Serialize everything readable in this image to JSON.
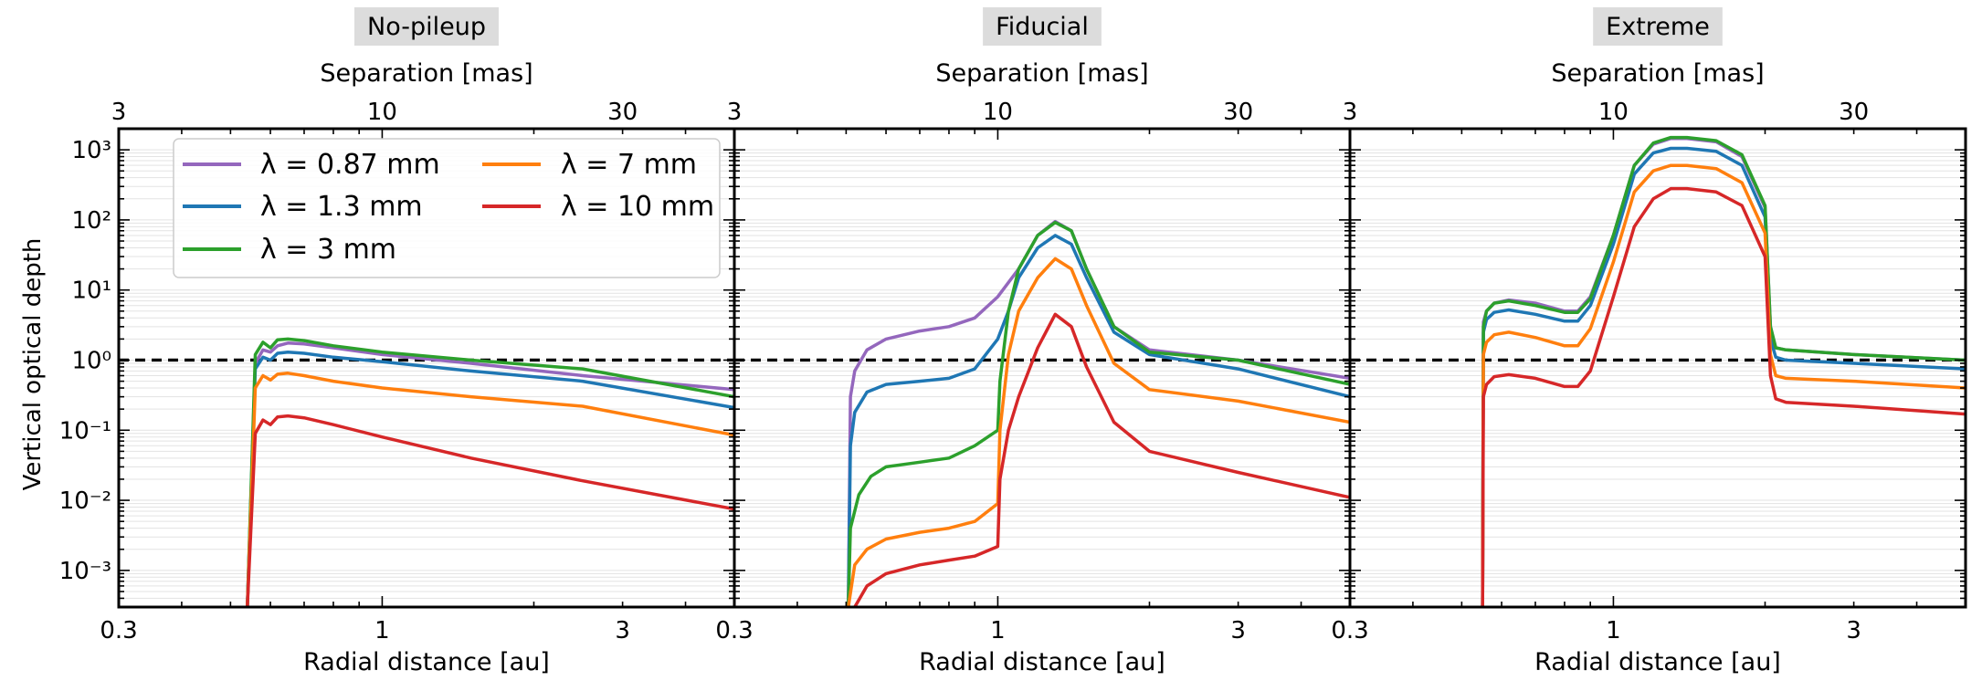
{
  "figure": {
    "shared_ylabel": "Vertical optical depth",
    "reference_line": {
      "tau": 1,
      "style": "dashed",
      "color": "#000000"
    }
  },
  "legend": {
    "placement": "upper-left of first panel",
    "entries": [
      {
        "label": "λ = 0.87 mm",
        "color": "#9467bd"
      },
      {
        "label": "λ = 1.3 mm",
        "color": "#1f77b4"
      },
      {
        "label": "λ = 3 mm",
        "color": "#2ca02c"
      },
      {
        "label": "λ = 7 mm",
        "color": "#ff7f0e"
      },
      {
        "label": "λ = 10 mm",
        "color": "#d62728"
      }
    ]
  },
  "chart_data": [
    {
      "type": "line",
      "title": "No-pileup",
      "xlabel": "Radial distance [au]",
      "ylabel": "Vertical optical depth",
      "top_xlabel": "Separation [mas]",
      "xscale": "log",
      "yscale": "log",
      "xlim": [
        0.3,
        5.0
      ],
      "ylim": [
        0.0003,
        2000
      ],
      "xticks": [
        0.3,
        1,
        3
      ],
      "xticklabels": [
        "0.3",
        "1",
        "3"
      ],
      "top_ticks_mas": [
        3,
        10,
        30
      ],
      "top_ticklabels": [
        "3",
        "10",
        "30"
      ],
      "au_per_mas": 0.1,
      "yticks_exp": [
        -3,
        -2,
        -1,
        0,
        1,
        2,
        3
      ],
      "series": [
        {
          "name": "λ = 0.87 mm",
          "color": "#9467bd",
          "x": [
            0.54,
            0.56,
            0.58,
            0.6,
            0.62,
            0.65,
            0.7,
            0.8,
            1.0,
            1.5,
            2.5,
            5.0
          ],
          "y": [
            0.0003,
            0.9,
            1.4,
            1.3,
            1.6,
            1.75,
            1.7,
            1.5,
            1.2,
            0.9,
            0.6,
            0.38
          ]
        },
        {
          "name": "λ = 1.3 mm",
          "color": "#1f77b4",
          "x": [
            0.54,
            0.56,
            0.58,
            0.6,
            0.62,
            0.65,
            0.7,
            0.8,
            1.0,
            1.5,
            2.5,
            5.0
          ],
          "y": [
            0.0003,
            0.75,
            1.1,
            1.0,
            1.25,
            1.3,
            1.25,
            1.1,
            0.95,
            0.7,
            0.5,
            0.21
          ]
        },
        {
          "name": "λ = 3 mm",
          "color": "#2ca02c",
          "x": [
            0.54,
            0.56,
            0.58,
            0.6,
            0.62,
            0.65,
            0.7,
            0.8,
            1.0,
            1.5,
            2.5,
            5.0
          ],
          "y": [
            0.0003,
            1.2,
            1.8,
            1.5,
            1.95,
            2.0,
            1.9,
            1.6,
            1.3,
            1.0,
            0.75,
            0.3
          ]
        },
        {
          "name": "λ = 7 mm",
          "color": "#ff7f0e",
          "x": [
            0.54,
            0.56,
            0.58,
            0.6,
            0.62,
            0.65,
            0.7,
            0.8,
            1.0,
            1.5,
            2.5,
            5.0
          ],
          "y": [
            0.0003,
            0.4,
            0.6,
            0.52,
            0.63,
            0.65,
            0.6,
            0.5,
            0.4,
            0.3,
            0.22,
            0.085
          ]
        },
        {
          "name": "λ = 10 mm",
          "color": "#d62728",
          "x": [
            0.54,
            0.56,
            0.58,
            0.6,
            0.62,
            0.65,
            0.7,
            0.8,
            1.0,
            1.5,
            2.5,
            5.0
          ],
          "y": [
            0.0003,
            0.09,
            0.14,
            0.12,
            0.155,
            0.16,
            0.15,
            0.12,
            0.08,
            0.04,
            0.019,
            0.0075
          ]
        }
      ]
    },
    {
      "type": "line",
      "title": "Fiducial",
      "xlabel": "Radial distance [au]",
      "ylabel": "Vertical optical depth",
      "top_xlabel": "Separation [mas]",
      "xscale": "log",
      "yscale": "log",
      "xlim": [
        0.3,
        5.0
      ],
      "ylim": [
        0.0003,
        2000
      ],
      "xticks": [
        0.3,
        1,
        3
      ],
      "xticklabels": [
        "0.3",
        "1",
        "3"
      ],
      "top_ticks_mas": [
        3,
        10,
        30
      ],
      "top_ticklabels": [
        "3",
        "10",
        "30"
      ],
      "au_per_mas": 0.1,
      "yticks_exp": [
        -3,
        -2,
        -1,
        0,
        1,
        2,
        3
      ],
      "series": [
        {
          "name": "λ = 0.87 mm",
          "color": "#9467bd",
          "x": [
            0.505,
            0.51,
            0.52,
            0.55,
            0.6,
            0.7,
            0.8,
            0.9,
            1.0,
            1.1,
            1.2,
            1.3,
            1.4,
            1.5,
            1.7,
            2.0,
            3.0,
            5.0
          ],
          "y": [
            0.0003,
            0.3,
            0.7,
            1.4,
            2.0,
            2.6,
            3.0,
            4.0,
            8.0,
            20,
            60,
            95,
            70,
            20,
            3,
            1.4,
            1.0,
            0.55
          ]
        },
        {
          "name": "λ = 1.3 mm",
          "color": "#1f77b4",
          "x": [
            0.505,
            0.51,
            0.52,
            0.55,
            0.6,
            0.7,
            0.8,
            0.9,
            1.0,
            1.05,
            1.1,
            1.2,
            1.3,
            1.4,
            1.5,
            1.7,
            2.0,
            3.0,
            5.0
          ],
          "y": [
            0.0003,
            0.06,
            0.18,
            0.35,
            0.45,
            0.5,
            0.55,
            0.75,
            2.0,
            5.0,
            15,
            40,
            60,
            45,
            15,
            2.5,
            1.2,
            0.75,
            0.3
          ]
        },
        {
          "name": "λ = 3 mm",
          "color": "#2ca02c",
          "x": [
            0.505,
            0.51,
            0.53,
            0.56,
            0.6,
            0.7,
            0.8,
            0.9,
            1.0,
            1.01,
            1.05,
            1.1,
            1.2,
            1.3,
            1.4,
            1.5,
            1.7,
            2.0,
            3.0,
            5.0
          ],
          "y": [
            0.0003,
            0.004,
            0.012,
            0.022,
            0.03,
            0.035,
            0.04,
            0.06,
            0.1,
            0.5,
            5.0,
            20,
            60,
            92,
            70,
            20,
            3,
            1.3,
            1.0,
            0.45
          ]
        },
        {
          "name": "λ = 7 mm",
          "color": "#ff7f0e",
          "x": [
            0.505,
            0.52,
            0.55,
            0.6,
            0.7,
            0.8,
            0.9,
            1.0,
            1.01,
            1.05,
            1.1,
            1.2,
            1.3,
            1.4,
            1.5,
            1.7,
            2.0,
            3.0,
            5.0
          ],
          "y": [
            0.0003,
            0.0012,
            0.002,
            0.0028,
            0.0035,
            0.004,
            0.005,
            0.009,
            0.1,
            1.2,
            5.0,
            15,
            28,
            20,
            6,
            0.9,
            0.38,
            0.26,
            0.13
          ]
        },
        {
          "name": "λ = 10 mm",
          "color": "#d62728",
          "x": [
            0.52,
            0.55,
            0.6,
            0.7,
            0.8,
            0.9,
            1.0,
            1.01,
            1.05,
            1.1,
            1.2,
            1.3,
            1.4,
            1.5,
            1.7,
            2.0,
            3.0,
            5.0
          ],
          "y": [
            0.0003,
            0.0006,
            0.0009,
            0.0012,
            0.0014,
            0.0016,
            0.0022,
            0.02,
            0.1,
            0.3,
            1.5,
            4.5,
            3.0,
            0.8,
            0.13,
            0.05,
            0.025,
            0.011
          ]
        }
      ]
    },
    {
      "type": "line",
      "title": "Extreme",
      "xlabel": "Radial distance [au]",
      "ylabel": "Vertical optical depth",
      "top_xlabel": "Separation [mas]",
      "xscale": "log",
      "yscale": "log",
      "xlim": [
        0.3,
        5.0
      ],
      "ylim": [
        0.0003,
        2000
      ],
      "xticks": [
        0.3,
        1,
        3
      ],
      "xticklabels": [
        "0.3",
        "1",
        "3"
      ],
      "top_ticks_mas": [
        3,
        10,
        30
      ],
      "top_ticklabels": [
        "3",
        "10",
        "30"
      ],
      "au_per_mas": 0.1,
      "yticks_exp": [
        -3,
        -2,
        -1,
        0,
        1,
        2,
        3
      ],
      "series": [
        {
          "name": "λ = 0.87 mm",
          "color": "#9467bd",
          "x": [
            0.55,
            0.552,
            0.56,
            0.58,
            0.62,
            0.7,
            0.8,
            0.85,
            0.9,
            1.0,
            1.1,
            1.2,
            1.3,
            1.4,
            1.6,
            1.8,
            2.0,
            2.05,
            2.1,
            2.2,
            3.0,
            5.0
          ],
          "y": [
            0.0003,
            3.5,
            5.0,
            6.5,
            7.2,
            6.5,
            5.0,
            5.0,
            8.0,
            60,
            600,
            1200,
            1450,
            1450,
            1300,
            800,
            150,
            3.0,
            1.5,
            1.4,
            1.2,
            1.0
          ]
        },
        {
          "name": "λ = 1.3 mm",
          "color": "#1f77b4",
          "x": [
            0.55,
            0.552,
            0.56,
            0.58,
            0.62,
            0.7,
            0.8,
            0.85,
            0.9,
            1.0,
            1.1,
            1.2,
            1.3,
            1.4,
            1.6,
            1.8,
            2.0,
            2.05,
            2.1,
            2.2,
            3.0,
            5.0
          ],
          "y": [
            0.0003,
            2.5,
            3.8,
            4.8,
            5.2,
            4.5,
            3.6,
            3.6,
            6.0,
            45,
            450,
            900,
            1050,
            1050,
            950,
            600,
            110,
            2.0,
            1.1,
            1.0,
            0.9,
            0.75
          ]
        },
        {
          "name": "λ = 3 mm",
          "color": "#2ca02c",
          "x": [
            0.55,
            0.552,
            0.56,
            0.58,
            0.62,
            0.7,
            0.8,
            0.85,
            0.9,
            1.0,
            1.1,
            1.2,
            1.3,
            1.4,
            1.6,
            1.8,
            2.0,
            2.05,
            2.1,
            2.2,
            3.0,
            5.0
          ],
          "y": [
            0.0003,
            3.0,
            5.0,
            6.5,
            7.0,
            6.0,
            4.8,
            4.8,
            7.5,
            60,
            600,
            1250,
            1500,
            1500,
            1350,
            850,
            160,
            3.0,
            1.5,
            1.4,
            1.2,
            1.0
          ]
        },
        {
          "name": "λ = 7 mm",
          "color": "#ff7f0e",
          "x": [
            0.55,
            0.552,
            0.56,
            0.58,
            0.62,
            0.7,
            0.8,
            0.85,
            0.9,
            1.0,
            1.1,
            1.2,
            1.3,
            1.4,
            1.6,
            1.8,
            2.0,
            2.05,
            2.1,
            2.2,
            3.0,
            5.0
          ],
          "y": [
            0.0003,
            1.2,
            1.8,
            2.3,
            2.5,
            2.1,
            1.6,
            1.6,
            2.8,
            25,
            250,
            500,
            600,
            600,
            540,
            340,
            65,
            1.2,
            0.6,
            0.55,
            0.5,
            0.4
          ]
        },
        {
          "name": "λ = 10 mm",
          "color": "#d62728",
          "x": [
            0.55,
            0.552,
            0.56,
            0.58,
            0.62,
            0.7,
            0.8,
            0.85,
            0.9,
            1.0,
            1.1,
            1.2,
            1.3,
            1.4,
            1.6,
            1.8,
            2.0,
            2.05,
            2.1,
            2.2,
            3.0,
            5.0
          ],
          "y": [
            0.0003,
            0.3,
            0.45,
            0.58,
            0.62,
            0.55,
            0.42,
            0.42,
            0.7,
            8.0,
            80,
            200,
            280,
            280,
            250,
            160,
            30,
            0.6,
            0.28,
            0.25,
            0.22,
            0.17
          ]
        }
      ]
    }
  ]
}
